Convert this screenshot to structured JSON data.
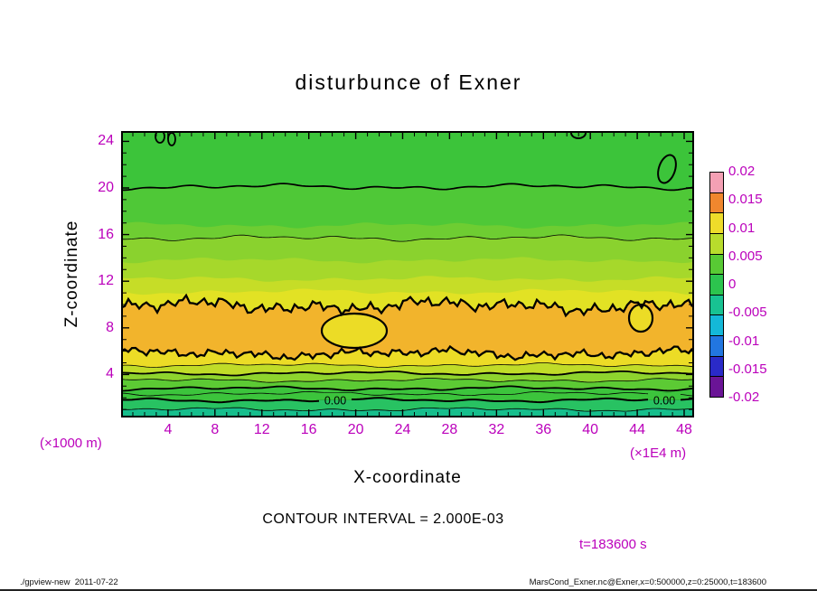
{
  "title": "disturbunce of Exner",
  "colors": {
    "label_magenta": "#bb00bb",
    "text_black": "#000000",
    "background": "#ffffff"
  },
  "footer": {
    "left": "./gpview-new  2011-07-22",
    "right": "MarsCond_Exner.nc@Exner,x=0:500000,z=0:25000,t=183600"
  },
  "chart_data": {
    "type": "contour",
    "title": "disturbunce of Exner",
    "xlabel": "X-coordinate",
    "ylabel": "Z-coordinate",
    "x_axis_factor": "(×1E4 m)",
    "y_axis_factor": "(×1000 m)",
    "x_ticks": [
      4,
      8,
      12,
      16,
      20,
      24,
      28,
      32,
      36,
      40,
      44,
      48
    ],
    "y_ticks": [
      4,
      8,
      12,
      16,
      20,
      24
    ],
    "x_domain": "x=0:500000",
    "z_domain": "z=0:25000",
    "time": "t=183600",
    "contour_interval": 0.002,
    "contour_interval_label": "CONTOUR INTERVAL = 2.000E-03",
    "time_label": "t=183600 s",
    "colorbar": {
      "tick_labels": [
        "0.02",
        "0.015",
        "0.01",
        "0.005",
        "0",
        "-0.005",
        "-0.01",
        "-0.015",
        "-0.02"
      ],
      "colors": [
        "#f4a0b4",
        "#f0872e",
        "#eedc2a",
        "#b8dc2c",
        "#58ca34",
        "#2cc44e",
        "#18c292",
        "#14b8d8",
        "#2276e0",
        "#2a2ac8",
        "#6a1496"
      ]
    },
    "fill_bands": [
      {
        "top_z": null,
        "color": "#3cc43a"
      },
      {
        "top_z": 20.1,
        "color": "#4fc837"
      },
      {
        "top_z": 16.8,
        "color": "#6ecd32"
      },
      {
        "top_z": 15.7,
        "color": "#8ad22e"
      },
      {
        "top_z": 13.8,
        "color": "#a6d82b"
      },
      {
        "top_z": 12.2,
        "color": "#c6dd27"
      },
      {
        "top_z": 11.1,
        "color": "#e2e224"
      },
      {
        "top_z": 9.9,
        "color": "#f2b42c",
        "jagged": true
      },
      {
        "top_z": 5.8,
        "color": "#ecdc26",
        "jagged": true
      },
      {
        "top_z": 4.8,
        "color": "#c0dc28"
      },
      {
        "top_z": 4.1,
        "color": "#8ed42e"
      },
      {
        "top_z": 3.5,
        "color": "#5cca34"
      },
      {
        "top_z": 2.8,
        "color": "#3cc43c"
      },
      {
        "top_z": 1.8,
        "color": "#28c262"
      },
      {
        "top_z": 1.0,
        "color": "#16be8c"
      }
    ],
    "contour_lines": [
      {
        "z": 20.1,
        "weight": 1.7
      },
      {
        "z": 15.7,
        "weight": 0.8
      },
      {
        "z": 9.9,
        "weight": 2.3,
        "jagged": true
      },
      {
        "z": 5.8,
        "weight": 2.3,
        "jagged": true
      },
      {
        "z": 4.8,
        "weight": 0.8
      },
      {
        "z": 4.1,
        "weight": 1.8
      },
      {
        "z": 3.5,
        "weight": 0.8
      },
      {
        "z": 2.8,
        "weight": 1.8
      },
      {
        "z": 2.35,
        "weight": 0.8
      },
      {
        "z": 1.8,
        "weight": 2.0,
        "label": "0.00"
      },
      {
        "z": 1.0,
        "weight": 0.8
      }
    ],
    "contour_labels": [
      "0.00",
      "0.00"
    ]
  }
}
